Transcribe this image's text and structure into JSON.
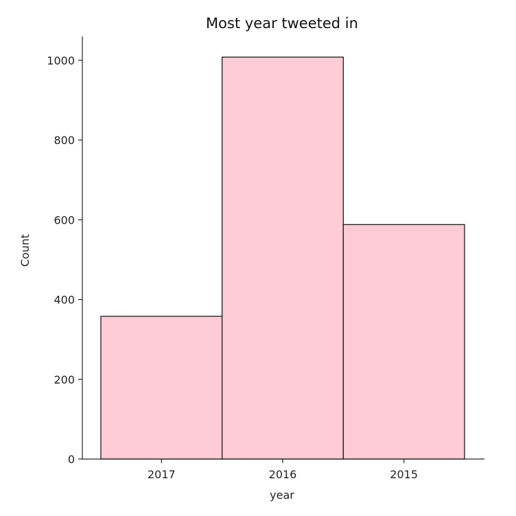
{
  "chart_data": {
    "type": "bar",
    "title": "Most year tweeted in",
    "xlabel": "year",
    "ylabel": "Count",
    "categories": [
      "2017",
      "2016",
      "2015"
    ],
    "values": [
      358,
      1008,
      588
    ],
    "ylim": [
      0,
      1060
    ],
    "yticks": [
      0,
      200,
      400,
      600,
      800,
      1000
    ],
    "grid": false,
    "legend": "none",
    "bar_color": "#ffccd5",
    "edge_color": "#1a1a1a"
  }
}
